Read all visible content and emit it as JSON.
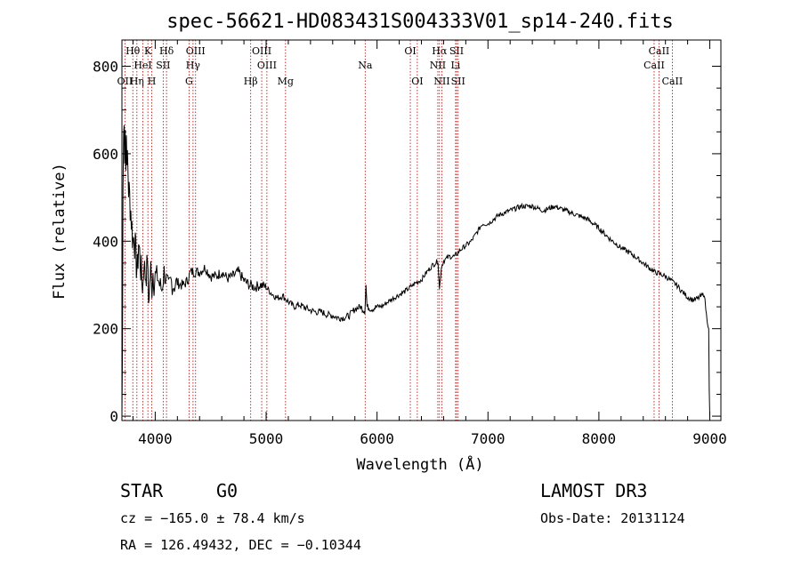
{
  "chart_data": {
    "type": "line",
    "title": "spec-56621-HD083431S004333V01_sp14-240.fits",
    "xlabel": "Wavelength (Å)",
    "ylabel": "Flux (relative)",
    "xlim": [
      3700,
      9100
    ],
    "ylim": [
      -10,
      860
    ],
    "xticks": [
      4000,
      5000,
      6000,
      7000,
      8000,
      9000
    ],
    "yticks": [
      0,
      200,
      400,
      600,
      800
    ],
    "series": [
      {
        "name": "flux",
        "x": [
          3700,
          3705,
          3710,
          3715,
          3720,
          3725,
          3730,
          3735,
          3740,
          3745,
          3750,
          3760,
          3770,
          3780,
          3790,
          3800,
          3810,
          3820,
          3830,
          3840,
          3850,
          3860,
          3870,
          3880,
          3890,
          3900,
          3910,
          3920,
          3930,
          3940,
          3950,
          3960,
          3970,
          3980,
          3990,
          4000,
          4020,
          4040,
          4060,
          4080,
          4100,
          4120,
          4140,
          4160,
          4180,
          4200,
          4230,
          4260,
          4290,
          4320,
          4350,
          4400,
          4450,
          4500,
          4550,
          4600,
          4650,
          4700,
          4750,
          4800,
          4850,
          4900,
          4950,
          5000,
          5050,
          5100,
          5150,
          5200,
          5250,
          5300,
          5350,
          5400,
          5450,
          5500,
          5550,
          5600,
          5650,
          5700,
          5750,
          5800,
          5850,
          5890,
          5900,
          5910,
          5950,
          6000,
          6050,
          6100,
          6150,
          6200,
          6250,
          6300,
          6350,
          6400,
          6450,
          6500,
          6550,
          6563,
          6580,
          6600,
          6650,
          6700,
          6750,
          6800,
          6850,
          6900,
          6950,
          7000,
          7100,
          7200,
          7300,
          7400,
          7500,
          7600,
          7700,
          7800,
          7900,
          8000,
          8100,
          8200,
          8300,
          8400,
          8500,
          8550,
          8600,
          8650,
          8700,
          8750,
          8800,
          8850,
          8900,
          8950,
          8970,
          8990,
          8995,
          9000
        ],
        "values": [
          0,
          150,
          520,
          640,
          700,
          600,
          660,
          560,
          680,
          540,
          600,
          520,
          500,
          470,
          430,
          400,
          420,
          380,
          350,
          330,
          400,
          370,
          340,
          310,
          300,
          360,
          320,
          320,
          370,
          260,
          300,
          340,
          290,
          330,
          300,
          320,
          320,
          300,
          290,
          330,
          310,
          290,
          310,
          300,
          300,
          305,
          300,
          300,
          310,
          330,
          330,
          330,
          340,
          320,
          320,
          330,
          315,
          320,
          330,
          310,
          300,
          295,
          300,
          295,
          280,
          270,
          275,
          262,
          250,
          255,
          248,
          242,
          238,
          238,
          232,
          230,
          225,
          225,
          230,
          245,
          250,
          240,
          300,
          250,
          245,
          250,
          252,
          262,
          270,
          278,
          285,
          295,
          305,
          312,
          330,
          345,
          355,
          290,
          340,
          355,
          365,
          365,
          380,
          390,
          400,
          420,
          440,
          440,
          460,
          470,
          480,
          480,
          470,
          480,
          470,
          460,
          450,
          430,
          405,
          385,
          370,
          350,
          330,
          325,
          320,
          310,
          300,
          285,
          272,
          265,
          270,
          280,
          230,
          200,
          60,
          0
        ]
      }
    ],
    "line_markers": [
      {
        "label": "Hθ",
        "x": 3798,
        "row": 1
      },
      {
        "label": "K",
        "x": 3934,
        "row": 1
      },
      {
        "label": "Hδ",
        "x": 4102,
        "row": 1
      },
      {
        "label": "OIII",
        "x": 4364,
        "row": 1
      },
      {
        "label": "OIII",
        "x": 4960,
        "row": 1
      },
      {
        "label": "OI",
        "x": 6300,
        "row": 1
      },
      {
        "label": "Hα",
        "x": 6563,
        "row": 1
      },
      {
        "label": "SII",
        "x": 6717,
        "row": 1
      },
      {
        "label": "CaII",
        "x": 8542,
        "row": 1
      },
      {
        "label": "HeI",
        "x": 3889,
        "row": 2
      },
      {
        "label": "SII",
        "x": 4072,
        "row": 2
      },
      {
        "label": "Hγ",
        "x": 4341,
        "row": 2
      },
      {
        "label": "OIII",
        "x": 5007,
        "row": 2
      },
      {
        "label": "Na",
        "x": 5893,
        "row": 2
      },
      {
        "label": "NII",
        "x": 6548,
        "row": 2
      },
      {
        "label": "Li",
        "x": 6708,
        "row": 2
      },
      {
        "label": "CaII",
        "x": 8498,
        "row": 2
      },
      {
        "label": "OII",
        "x": 3727,
        "row": 3
      },
      {
        "label": "Hη",
        "x": 3835,
        "row": 3
      },
      {
        "label": "H",
        "x": 3969,
        "row": 3
      },
      {
        "label": "G",
        "x": 4305,
        "row": 3
      },
      {
        "label": "Hβ",
        "x": 4861,
        "row": 3
      },
      {
        "label": "Mg",
        "x": 5175,
        "row": 3
      },
      {
        "label": "OI",
        "x": 6363,
        "row": 3
      },
      {
        "label": "NII",
        "x": 6584,
        "row": 3
      },
      {
        "label": "SII",
        "x": 6731,
        "row": 3
      },
      {
        "label": "CaII",
        "x": 8662,
        "row": 3
      }
    ]
  },
  "info": {
    "object_type": "STAR",
    "subclass": "G0",
    "survey": "LAMOST DR3",
    "cz": "cz = −165.0 ± 78.4 km/s",
    "obs_date": "Obs-Date: 20131124",
    "radec": "RA = 126.49432, DEC =  −0.10344"
  }
}
